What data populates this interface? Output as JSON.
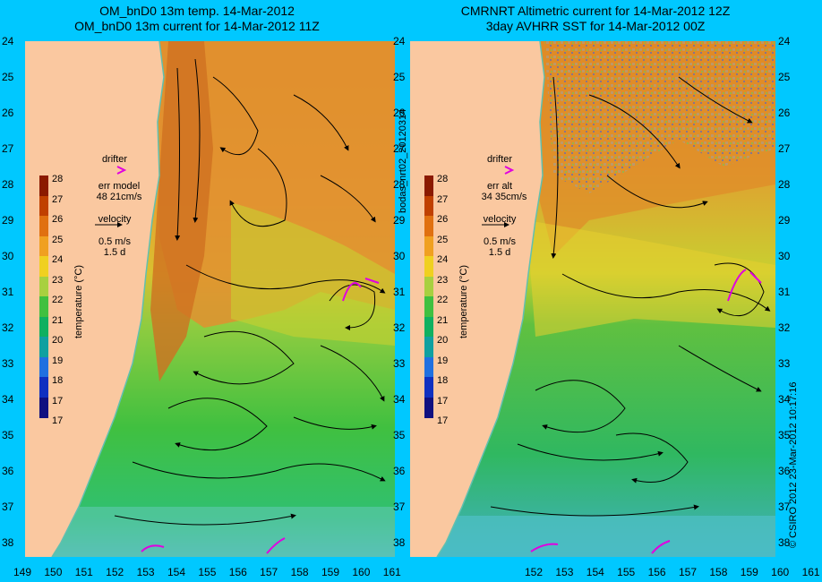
{
  "left_panel": {
    "title_line1": "OM_bnD0 13m temp. 14-Mar-2012",
    "title_line2": "OM_bnD0 13m current for 14-Mar-2012 11Z",
    "legend": {
      "drifter": "drifter",
      "err_label": "err model",
      "err_value": "48 21cm/s",
      "velocity": "velocity",
      "scale_speed": "0.5 m/s",
      "scale_time": "1.5 d"
    }
  },
  "right_panel": {
    "title_line1": "CMRNRT Altimetric current for 14-Mar-2012 12Z",
    "title_line2": "3day AVHRR SST for 14-Mar-2012 00Z",
    "legend": {
      "drifter": "drifter",
      "err_label": "err alt",
      "err_value": "34 35cm/s",
      "velocity": "velocity",
      "scale_speed": "0.5 m/s",
      "scale_time": "1.5 d"
    }
  },
  "colorbar": {
    "label": "temperature (°C)",
    "ticks": [
      "28",
      "27",
      "26",
      "25",
      "24",
      "23",
      "22",
      "21",
      "20",
      "19",
      "18",
      "17",
      "17"
    ],
    "colors": [
      "#8b1a00",
      "#c04000",
      "#e07010",
      "#f0a020",
      "#f0d020",
      "#a8d040",
      "#40c040",
      "#10b060",
      "#10a0a0",
      "#2070e0",
      "#1030c0",
      "#101080"
    ]
  },
  "y_axis_labels": [
    "24",
    "25",
    "26",
    "27",
    "28",
    "29",
    "30",
    "31",
    "32",
    "33",
    "34",
    "35",
    "36",
    "37",
    "38"
  ],
  "left_x_labels": [
    "149",
    "150",
    "151",
    "152",
    "153",
    "154",
    "155",
    "156",
    "157",
    "158",
    "159",
    "160",
    "161"
  ],
  "right_x_labels": [
    "152",
    "153",
    "154",
    "155",
    "156",
    "157",
    "158",
    "159",
    "160",
    "161"
  ],
  "side_label": "bodas_nrt02_20120314",
  "credit": "© CSIRO 2012  23-Mar-2012 10:17:16",
  "colors": {
    "background": "#00c8ff",
    "land": "#fac8a0",
    "drifter": "#e000e0",
    "coast": "#60c0b0"
  }
}
